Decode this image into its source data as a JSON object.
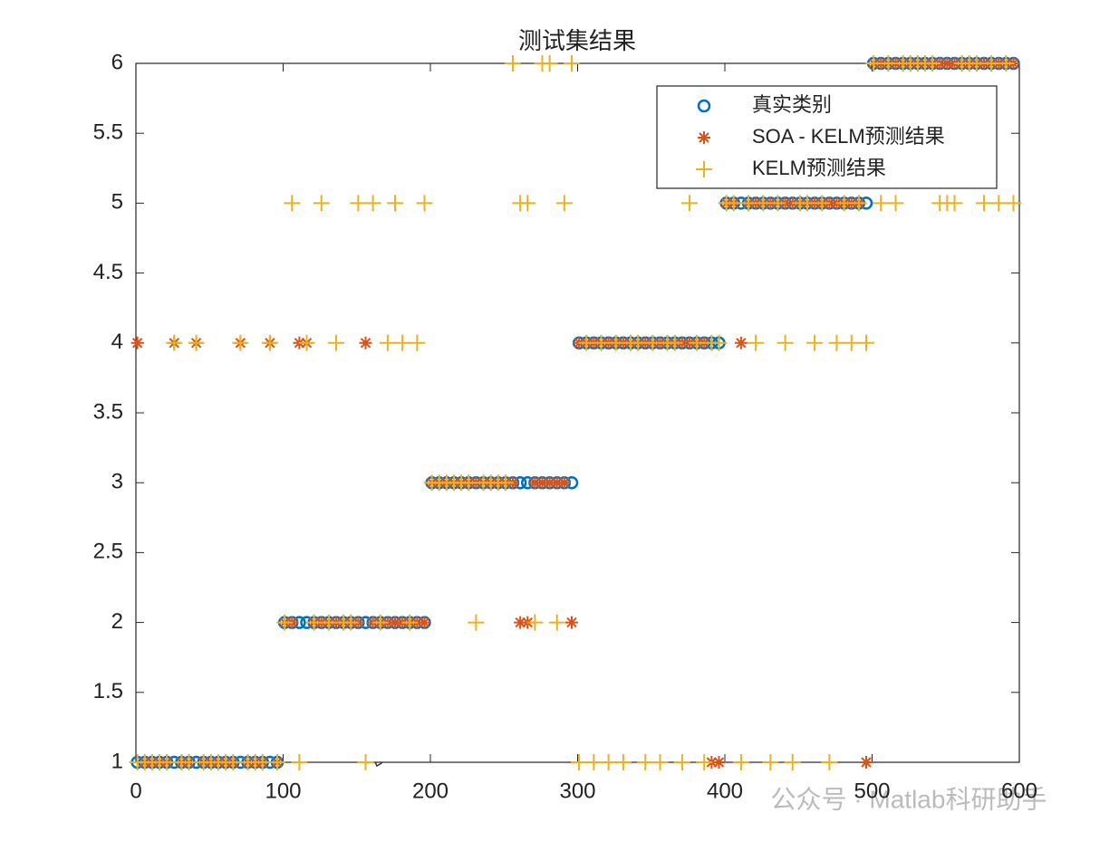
{
  "chart_data": {
    "type": "scatter",
    "title": "测试集结果",
    "x": [
      1,
      6,
      11,
      16,
      21,
      26,
      31,
      36,
      41,
      46,
      51,
      56,
      61,
      66,
      71,
      76,
      81,
      86,
      91,
      96,
      101,
      106,
      111,
      116,
      121,
      126,
      131,
      136,
      141,
      146,
      151,
      156,
      161,
      166,
      171,
      176,
      181,
      186,
      191,
      196,
      201,
      206,
      211,
      216,
      221,
      226,
      231,
      236,
      241,
      246,
      251,
      256,
      261,
      266,
      271,
      276,
      281,
      286,
      291,
      296,
      301,
      306,
      311,
      316,
      321,
      326,
      331,
      336,
      341,
      346,
      351,
      356,
      361,
      366,
      371,
      376,
      381,
      386,
      391,
      396,
      401,
      406,
      411,
      416,
      421,
      426,
      431,
      436,
      441,
      446,
      451,
      456,
      461,
      466,
      471,
      476,
      481,
      486,
      491,
      496,
      501,
      506,
      511,
      516,
      521,
      526,
      531,
      536,
      541,
      546,
      551,
      556,
      561,
      566,
      571,
      576,
      581,
      586,
      591,
      596
    ],
    "series": [
      {
        "name": "真实类别",
        "color": "#0072bd",
        "marker": "circle",
        "values": [
          1,
          1,
          1,
          1,
          1,
          1,
          1,
          1,
          1,
          1,
          1,
          1,
          1,
          1,
          1,
          1,
          1,
          1,
          1,
          1,
          2,
          2,
          2,
          2,
          2,
          2,
          2,
          2,
          2,
          2,
          2,
          2,
          2,
          2,
          2,
          2,
          2,
          2,
          2,
          2,
          3,
          3,
          3,
          3,
          3,
          3,
          3,
          3,
          3,
          3,
          3,
          3,
          3,
          3,
          3,
          3,
          3,
          3,
          3,
          3,
          4,
          4,
          4,
          4,
          4,
          4,
          4,
          4,
          4,
          4,
          4,
          4,
          4,
          4,
          4,
          4,
          4,
          4,
          4,
          4,
          5,
          5,
          5,
          5,
          5,
          5,
          5,
          5,
          5,
          5,
          5,
          5,
          5,
          5,
          5,
          5,
          5,
          5,
          5,
          5,
          6,
          6,
          6,
          6,
          6,
          6,
          6,
          6,
          6,
          6,
          6,
          6,
          6,
          6,
          6,
          6,
          6,
          6,
          6,
          6
        ]
      },
      {
        "name": "SOA - KELM预测结果",
        "color": "#d95319",
        "marker": "star",
        "values": [
          4,
          1,
          1,
          1,
          1,
          4,
          1,
          1,
          4,
          1,
          1,
          1,
          1,
          1,
          4,
          1,
          1,
          1,
          4,
          1,
          2,
          2,
          4,
          4,
          2,
          2,
          2,
          2,
          2,
          2,
          2,
          4,
          2,
          2,
          2,
          2,
          2,
          2,
          2,
          2,
          3,
          3,
          3,
          3,
          3,
          3,
          3,
          3,
          3,
          3,
          3,
          3,
          2,
          2,
          3,
          3,
          3,
          3,
          3,
          2,
          4,
          4,
          4,
          4,
          4,
          4,
          4,
          4,
          4,
          4,
          4,
          4,
          4,
          4,
          4,
          4,
          4,
          4,
          1,
          1,
          5,
          5,
          4,
          5,
          5,
          5,
          5,
          5,
          5,
          5,
          5,
          5,
          5,
          5,
          5,
          5,
          5,
          5,
          5,
          1,
          6,
          6,
          6,
          6,
          6,
          6,
          6,
          6,
          6,
          6,
          6,
          6,
          6,
          6,
          6,
          6,
          6,
          6,
          6,
          6
        ]
      },
      {
        "name": "KELM预测结果",
        "color": "#edb120",
        "marker": "plus",
        "values": [
          1,
          1,
          1,
          1,
          1,
          4,
          1,
          1,
          4,
          1,
          1,
          1,
          1,
          1,
          4,
          1,
          1,
          1,
          4,
          1,
          2,
          5,
          1,
          4,
          2,
          5,
          2,
          4,
          2,
          2,
          5,
          1,
          5,
          2,
          4,
          5,
          4,
          2,
          4,
          5,
          3,
          3,
          3,
          3,
          3,
          3,
          2,
          3,
          3,
          3,
          3,
          6,
          5,
          5,
          2,
          6,
          6,
          2,
          5,
          6,
          1,
          4,
          1,
          4,
          1,
          4,
          1,
          4,
          4,
          1,
          4,
          1,
          4,
          4,
          1,
          5,
          4,
          1,
          4,
          4,
          5,
          5,
          1,
          5,
          4,
          5,
          1,
          5,
          4,
          1,
          5,
          5,
          4,
          5,
          1,
          4,
          5,
          4,
          5,
          4,
          6,
          5,
          6,
          5,
          6,
          6,
          6,
          6,
          6,
          5,
          5,
          5,
          6,
          6,
          6,
          5,
          6,
          5,
          6,
          5
        ]
      }
    ],
    "xlim": [
      0,
      600
    ],
    "xticks": [
      0,
      100,
      200,
      300,
      400,
      500,
      600
    ],
    "ylim": [
      1,
      6
    ],
    "yticks": [
      1,
      1.5,
      2,
      2.5,
      3,
      3.5,
      4,
      4.5,
      5,
      5.5,
      6
    ],
    "legend": "northeast"
  },
  "watermark": "公众号 · Matlab科研助手"
}
